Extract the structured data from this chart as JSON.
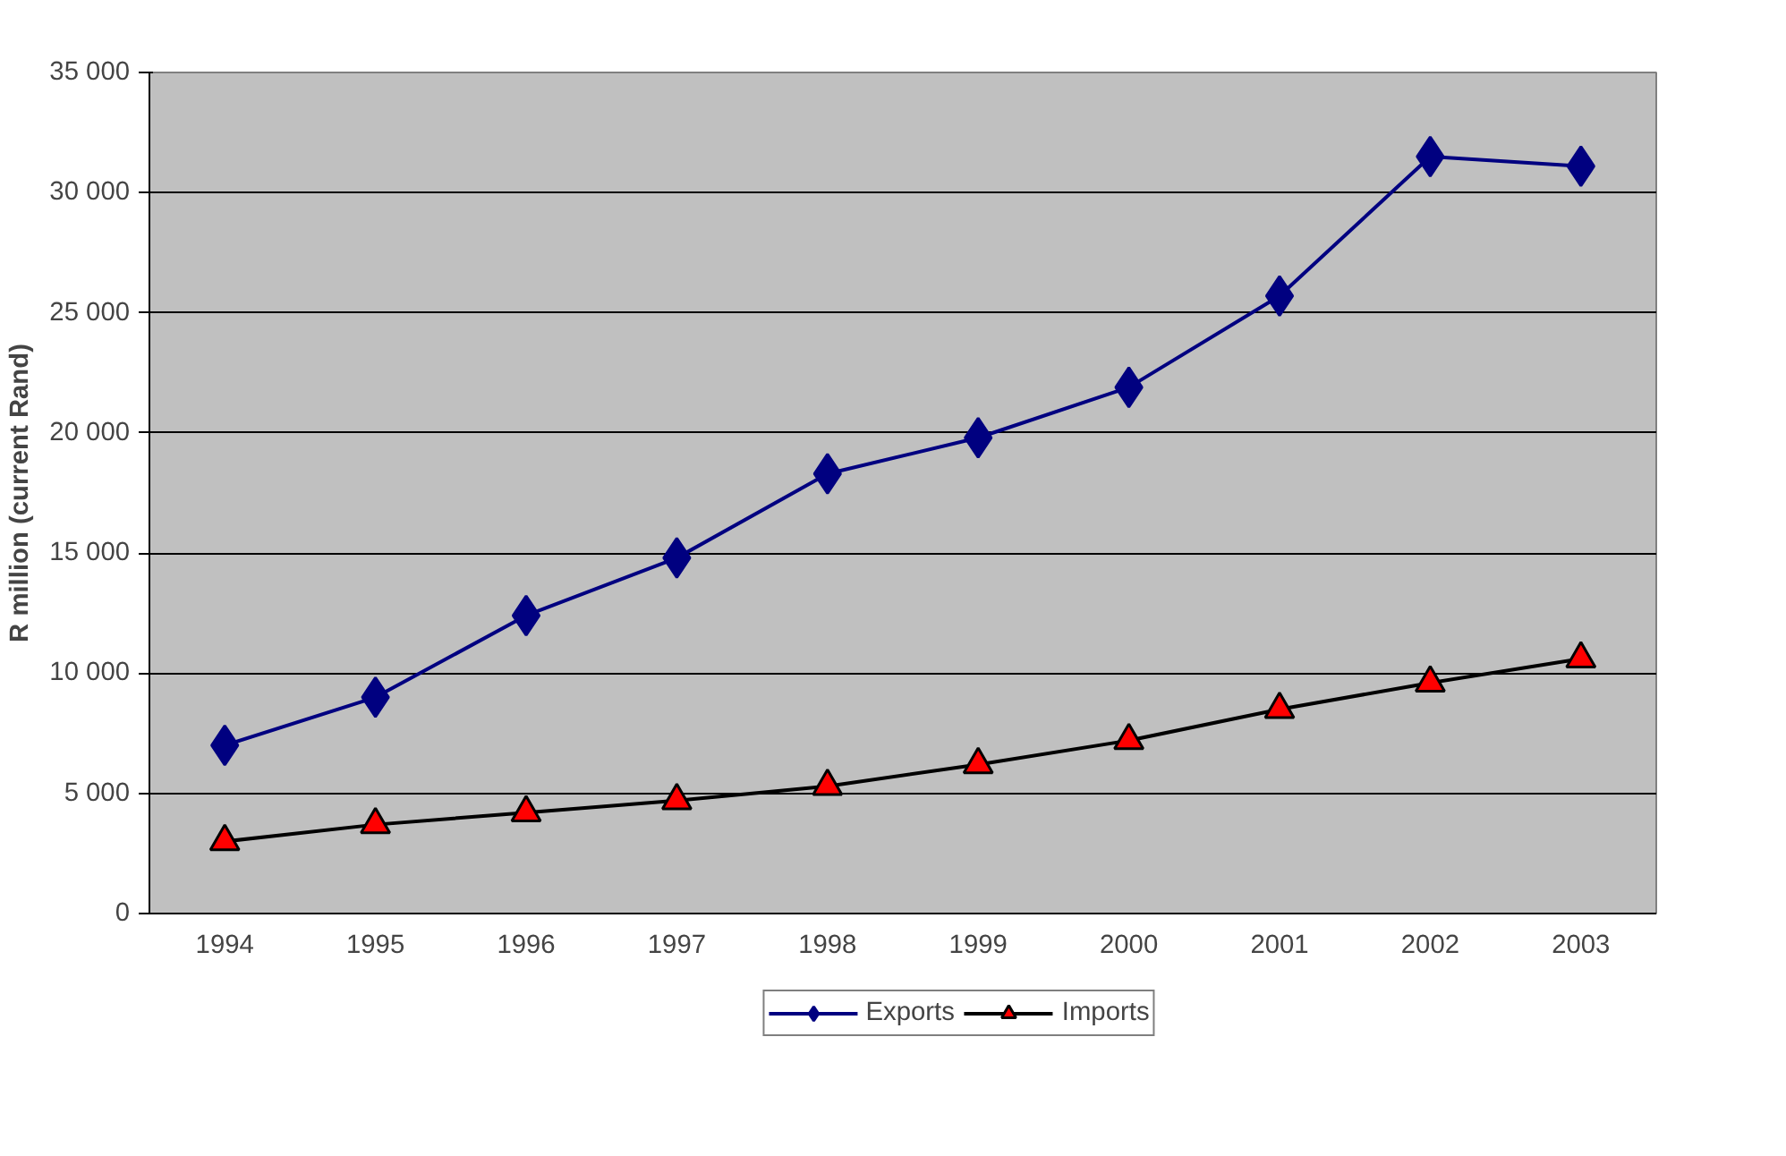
{
  "chart_data": {
    "type": "line",
    "ylabel": "R million (current Rand)",
    "categories": [
      "1994",
      "1995",
      "1996",
      "1997",
      "1998",
      "1999",
      "2000",
      "2001",
      "2002",
      "2003"
    ],
    "series": [
      {
        "name": "Exports",
        "color": "#000080",
        "marker": "diamond",
        "values": [
          7000,
          9000,
          12400,
          14800,
          18300,
          19800,
          21900,
          25700,
          31500,
          31100
        ]
      },
      {
        "name": "Imports",
        "color": "#000000",
        "marker": "triangle",
        "colors": [
          "#ff0000",
          "#ff0000",
          "#ff0000",
          "#ff0000",
          "#ff0000",
          "#ff0000",
          "#ff0000",
          "#ff0000",
          "#ff0000",
          "#ff0000"
        ],
        "values": [
          3000,
          3700,
          4200,
          4700,
          5300,
          6200,
          7200,
          8500,
          9600,
          10600
        ]
      }
    ],
    "ylim": [
      0,
      35000
    ],
    "yticks": [
      0,
      {
        "value": 5000,
        "label": "5 000"
      },
      {
        "value": 10000,
        "label": "10 000"
      },
      {
        "value": 15000,
        "label": "15 000"
      },
      {
        "value": 20000,
        "label": "20 000"
      },
      {
        "value": 25000,
        "label": "25 000"
      },
      {
        "value": 30000,
        "label": "30 000"
      },
      {
        "value": 35000,
        "label": "35 000"
      }
    ],
    "grid": "y",
    "legend": "bottom",
    "line_style": "solid"
  }
}
